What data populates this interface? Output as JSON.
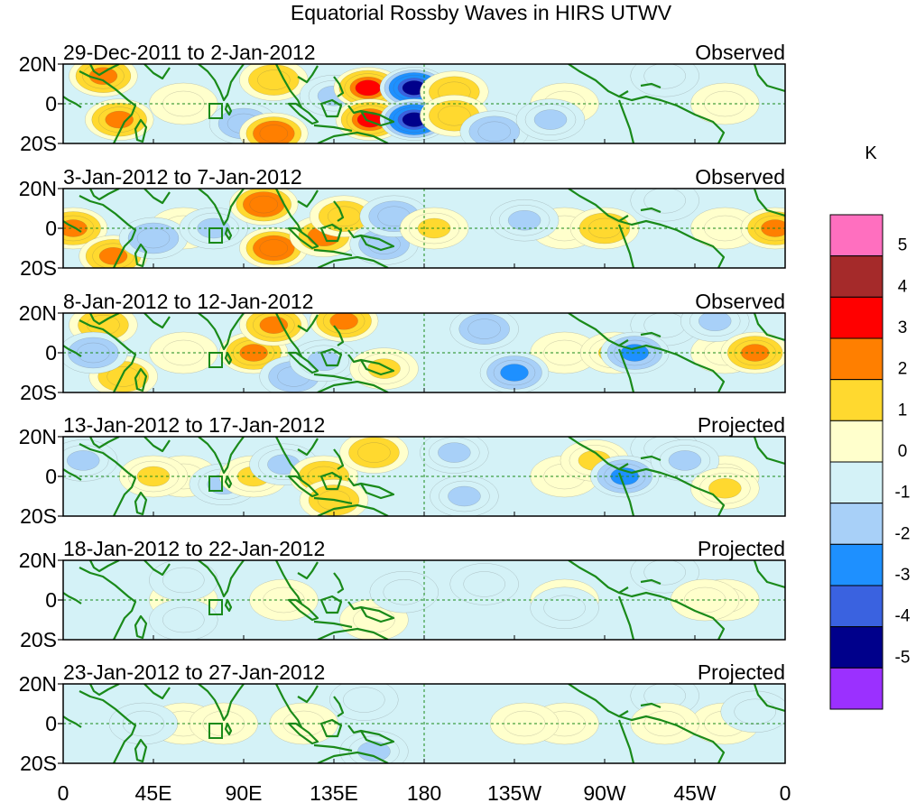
{
  "chart_data": {
    "type": "heatmap",
    "title": "Equatorial Rossby Waves in HIRS UTWV",
    "units": "K",
    "y_ticks": [
      "20N",
      "0",
      "20S"
    ],
    "x_ticks": [
      "0",
      "45E",
      "90E",
      "135E",
      "180",
      "135W",
      "90W",
      "45W",
      "0"
    ],
    "colorbar": {
      "labels": [
        "5",
        "4",
        "3",
        "2",
        "1",
        "0",
        "-1",
        "-2",
        "-3",
        "-4",
        "-5"
      ],
      "colors": [
        "#ff6fbf",
        "#a52a2a",
        "#ff0000",
        "#ff7f00",
        "#ffd92f",
        "#ffffcc",
        "#d4f2f7",
        "#a8d0f8",
        "#1e90ff",
        "#3a62e0",
        "#00008b",
        "#9b30ff"
      ]
    },
    "panels": [
      {
        "period": "29-Dec-2011 to 2-Jan-2012",
        "status": "Observed",
        "blobs": [
          [
            20,
            14,
            2.6
          ],
          [
            28,
            -8,
            2.6
          ],
          [
            90,
            -10,
            -1.8
          ],
          [
            105,
            -15,
            2.8
          ],
          [
            105,
            12,
            1.8
          ],
          [
            135,
            4,
            -1.5
          ],
          [
            152,
            8,
            3.3
          ],
          [
            153,
            -8,
            3.3
          ],
          [
            175,
            8,
            -4.5
          ],
          [
            175,
            -8,
            -4.5
          ],
          [
            195,
            6,
            1.8
          ],
          [
            195,
            -6,
            1.8
          ],
          [
            215,
            -14,
            -1.6
          ],
          [
            243,
            -8,
            -1.2
          ]
        ]
      },
      {
        "period": "3-Jan-2012 to 7-Jan-2012",
        "status": "Observed",
        "blobs": [
          [
            5,
            0,
            2.4
          ],
          [
            25,
            -14,
            2.6
          ],
          [
            45,
            -5,
            -2
          ],
          [
            75,
            0,
            -1.5
          ],
          [
            100,
            12,
            2.8
          ],
          [
            105,
            -10,
            2.8
          ],
          [
            130,
            -4,
            2
          ],
          [
            140,
            6,
            1.8
          ],
          [
            160,
            -8,
            -2
          ],
          [
            165,
            6,
            -2
          ],
          [
            185,
            0,
            1.3
          ],
          [
            230,
            4,
            -1.2
          ],
          [
            270,
            0,
            1.7
          ],
          [
            355,
            0,
            2.3
          ]
        ]
      },
      {
        "period": "8-Jan-2012 to 12-Jan-2012",
        "status": "Observed",
        "blobs": [
          [
            20,
            14,
            1.6
          ],
          [
            30,
            -12,
            1.6
          ],
          [
            15,
            0,
            -1.6
          ],
          [
            95,
            0,
            2.6
          ],
          [
            105,
            14,
            2.2
          ],
          [
            115,
            -12,
            -2
          ],
          [
            130,
            -4,
            -1.5
          ],
          [
            140,
            16,
            2.2
          ],
          [
            160,
            -8,
            1.4
          ],
          [
            210,
            12,
            -2
          ],
          [
            225,
            -10,
            -2.2
          ],
          [
            275,
            0,
            1.4
          ],
          [
            285,
            0,
            -2.3
          ],
          [
            325,
            16,
            -1.1
          ],
          [
            345,
            0,
            2.2
          ]
        ]
      },
      {
        "period": "13-Jan-2012 to 17-Jan-2012",
        "status": "Projected",
        "blobs": [
          [
            10,
            8,
            -1.2
          ],
          [
            45,
            0,
            1.2
          ],
          [
            80,
            -4,
            -1.1
          ],
          [
            95,
            0,
            1.1
          ],
          [
            110,
            6,
            -1.2
          ],
          [
            130,
            0,
            1.7
          ],
          [
            135,
            -12,
            1.8
          ],
          [
            155,
            12,
            1.7
          ],
          [
            195,
            12,
            -1.4
          ],
          [
            200,
            -10,
            -1.3
          ],
          [
            265,
            8,
            1.2
          ],
          [
            280,
            0,
            -2.1
          ],
          [
            310,
            8,
            -1.1
          ],
          [
            330,
            -6,
            1.1
          ]
        ]
      },
      {
        "period": "18-Jan-2012 to 22-Jan-2012",
        "status": "Projected",
        "blobs": [
          [
            60,
            10,
            -0.9
          ],
          [
            60,
            -10,
            -0.9
          ],
          [
            110,
            0,
            0.8
          ],
          [
            155,
            -10,
            0.8
          ],
          [
            170,
            4,
            -0.8
          ],
          [
            210,
            8,
            -1
          ],
          [
            250,
            -4,
            -0.5
          ],
          [
            320,
            0,
            0.8
          ]
        ]
      },
      {
        "period": "23-Jan-2012 to 27-Jan-2012",
        "status": "Projected",
        "blobs": [
          [
            40,
            0,
            -0.9
          ],
          [
            80,
            0,
            0.8
          ],
          [
            120,
            0,
            0.7
          ],
          [
            150,
            12,
            -1
          ],
          [
            155,
            -14,
            -1.3
          ],
          [
            230,
            0,
            0.6
          ],
          [
            300,
            0,
            0.7
          ],
          [
            345,
            6,
            -0.6
          ]
        ]
      }
    ]
  }
}
